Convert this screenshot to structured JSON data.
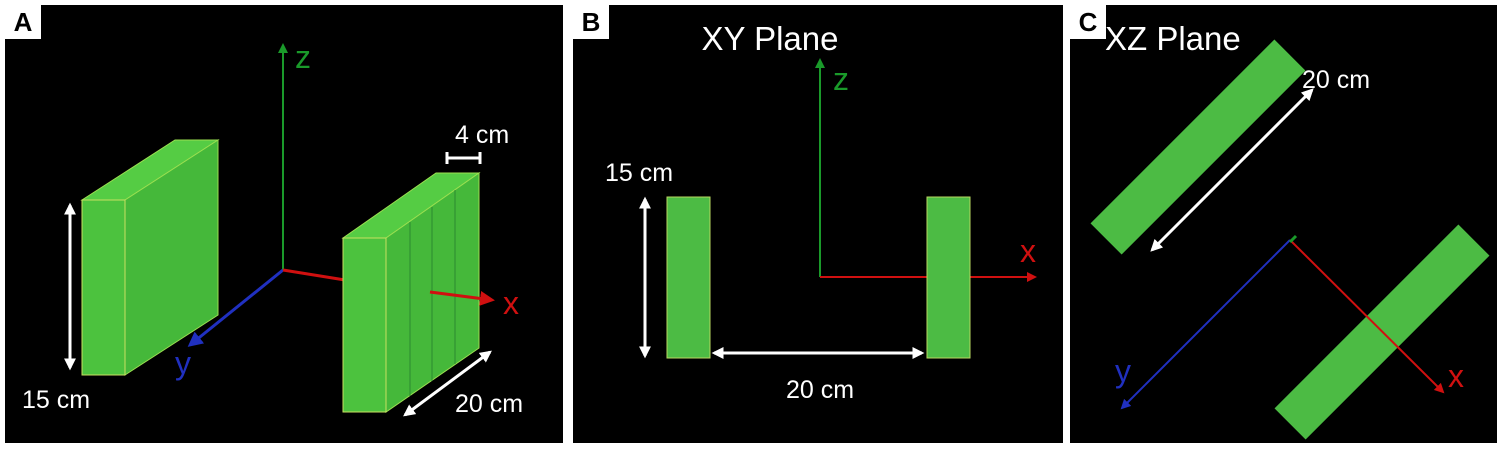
{
  "panels": [
    {
      "letter": "A",
      "axes": {
        "z": "z",
        "x": "x",
        "y": "y"
      },
      "dimensions": {
        "thickness": "4 cm",
        "height": "15 cm",
        "length": "20 cm"
      }
    },
    {
      "letter": "B",
      "title": "XY Plane",
      "axes": {
        "z": "z",
        "x": "x"
      },
      "dimensions": {
        "height": "15 cm",
        "separation": "20 cm"
      }
    },
    {
      "letter": "C",
      "title": "XZ Plane",
      "axes": {
        "y": "y",
        "x": "x"
      },
      "dimensions": {
        "length": "20 cm"
      }
    }
  ]
}
